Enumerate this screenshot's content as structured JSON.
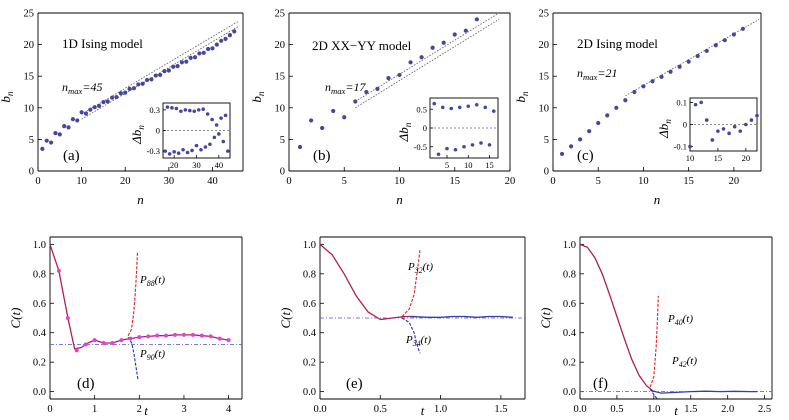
{
  "chart_data": [
    {
      "id": "a",
      "type": "scatter",
      "title": "1D Ising model",
      "annotation": "n",
      "annotation_sub": "max",
      "annotation_val": "=45",
      "panel_tag": "(a)",
      "xlabel": "n",
      "ylabel": "b",
      "ylabel_sub": "n",
      "xlim": [
        0,
        47
      ],
      "ylim": [
        0,
        25
      ],
      "xticks": [
        "0",
        "10",
        "20",
        "30",
        "40"
      ],
      "yticks": [
        "0",
        "5",
        "10",
        "15",
        "20",
        "25"
      ],
      "x": [
        1,
        2,
        3,
        4,
        5,
        6,
        7,
        8,
        9,
        10,
        11,
        12,
        13,
        14,
        15,
        16,
        17,
        18,
        19,
        20,
        21,
        22,
        23,
        24,
        25,
        26,
        27,
        28,
        29,
        30,
        31,
        32,
        33,
        34,
        35,
        36,
        37,
        38,
        39,
        40,
        41,
        42,
        43,
        44,
        45
      ],
      "values": [
        3.5,
        4.8,
        4.5,
        6,
        5.8,
        7.1,
        6.9,
        8.2,
        8.0,
        9.3,
        9.1,
        9.7,
        10.1,
        10.3,
        10.9,
        11.0,
        11.6,
        11.7,
        12.3,
        12.4,
        13.0,
        13.1,
        13.7,
        13.8,
        14.4,
        14.5,
        15.1,
        15.2,
        15.8,
        15.9,
        16.5,
        16.6,
        17.2,
        17.3,
        17.9,
        18.0,
        18.6,
        18.7,
        19.3,
        19.4,
        20.0,
        20.6,
        20.9,
        21.5,
        22.1
      ],
      "fit_lines": [
        {
          "x": [
            10,
            46
          ],
          "y": [
            9.0,
            23.7
          ]
        },
        {
          "x": [
            10,
            46
          ],
          "y": [
            8.2,
            22.9
          ]
        }
      ],
      "inset": {
        "ylabel": "Δb",
        "ylabel_sub": "n",
        "xlim": [
          15,
          45
        ],
        "ylim": [
          -0.4,
          0.4
        ],
        "xticks": [
          "20",
          "30",
          "40"
        ],
        "yticks": [
          "0.3",
          "0",
          "-0.3"
        ],
        "zero_line": 0,
        "x": [
          16,
          17,
          18,
          19,
          20,
          21,
          22,
          23,
          24,
          25,
          26,
          27,
          28,
          29,
          30,
          31,
          32,
          33,
          34,
          35,
          36,
          37,
          38,
          39,
          40,
          41,
          42,
          43,
          44
        ],
        "values": [
          -0.3,
          0.34,
          -0.34,
          0.33,
          -0.31,
          0.32,
          -0.33,
          0.28,
          -0.28,
          0.3,
          -0.32,
          0.29,
          -0.29,
          0.28,
          -0.22,
          0.3,
          -0.28,
          0.31,
          -0.24,
          0.24,
          -0.2,
          0.16,
          -0.1,
          0.08,
          -0.05,
          0.18,
          -0.16,
          0.22,
          -0.3
        ]
      }
    },
    {
      "id": "b",
      "type": "scatter",
      "title": "2D XX−YY model",
      "annotation": "n",
      "annotation_sub": "max",
      "annotation_val": "=17",
      "panel_tag": "(b)",
      "xlabel": "n",
      "ylabel": "b",
      "ylabel_sub": "n",
      "xlim": [
        0,
        20
      ],
      "ylim": [
        0,
        25
      ],
      "xticks": [
        "0",
        "5",
        "10",
        "15",
        "20"
      ],
      "yticks": [
        "0",
        "5",
        "10",
        "15",
        "20",
        "25"
      ],
      "x": [
        1,
        2,
        3,
        4,
        5,
        6,
        7,
        8,
        9,
        10,
        11,
        12,
        13,
        14,
        15,
        16,
        17
      ],
      "values": [
        3.8,
        8.0,
        6.8,
        9.5,
        8.5,
        11.0,
        12.5,
        13.0,
        14.7,
        15.2,
        17.2,
        18.0,
        19.5,
        20.3,
        21.6,
        22.2,
        24.0
      ],
      "fit_lines": [
        {
          "x": [
            6,
            19
          ],
          "y": [
            11.0,
            25.0
          ]
        },
        {
          "x": [
            6,
            19
          ],
          "y": [
            10.0,
            24.0
          ]
        }
      ],
      "inset": {
        "ylabel": "Δb",
        "ylabel_sub": "n",
        "xlim": [
          1,
          17
        ],
        "ylim": [
          -0.8,
          0.8
        ],
        "xticks": [
          "5",
          "10",
          "15"
        ],
        "yticks": [
          "0.5",
          "0",
          "-0.5"
        ],
        "zero_line": 0,
        "x": [
          2,
          3,
          4,
          5,
          6,
          7,
          8,
          9,
          10,
          11,
          12,
          13,
          14,
          15,
          16
        ],
        "values": [
          0.65,
          -0.7,
          0.55,
          -0.55,
          0.52,
          -0.58,
          0.55,
          -0.5,
          0.58,
          -0.45,
          0.62,
          -0.4,
          0.55,
          -0.45,
          0.45
        ]
      }
    },
    {
      "id": "c",
      "type": "scatter",
      "title": "2D Ising model",
      "annotation": "n",
      "annotation_sub": "max",
      "annotation_val": "=21",
      "panel_tag": "(c)",
      "xlabel": "n",
      "ylabel": "b",
      "ylabel_sub": "n",
      "xlim": [
        0,
        23
      ],
      "ylim": [
        0,
        25
      ],
      "xticks": [
        "0",
        "5",
        "10",
        "15",
        "20"
      ],
      "yticks": [
        "0",
        "5",
        "10",
        "15",
        "20",
        "25"
      ],
      "x": [
        1,
        2,
        3,
        4,
        5,
        6,
        7,
        8,
        9,
        10,
        11,
        12,
        13,
        14,
        15,
        16,
        17,
        18,
        19,
        20,
        21
      ],
      "values": [
        2.7,
        3.9,
        5.0,
        6.3,
        7.6,
        8.8,
        10.0,
        11.2,
        12.5,
        13.4,
        14.2,
        14.9,
        15.7,
        16.5,
        17.3,
        18.2,
        19.0,
        19.9,
        20.7,
        21.6,
        22.5
      ],
      "fit_lines": [
        {
          "x": [
            8,
            22.8
          ],
          "y": [
            11.9,
            24.0
          ]
        }
      ],
      "inset": {
        "ylabel": "Δb",
        "ylabel_sub": "n",
        "xlim": [
          10,
          22
        ],
        "ylim": [
          -0.12,
          0.12
        ],
        "xticks": [
          "10",
          "15",
          "20"
        ],
        "yticks": [
          "0.1",
          "0",
          "-0.1"
        ],
        "zero_line": 0,
        "x": [
          10,
          11,
          12,
          13,
          14,
          15,
          16,
          17,
          18,
          19,
          20,
          21,
          22
        ],
        "values": [
          -0.1,
          0.09,
          0.1,
          0.02,
          -0.07,
          -0.03,
          -0.02,
          -0.04,
          -0.01,
          -0.03,
          0.0,
          0.02,
          0.04
        ]
      }
    },
    {
      "id": "d",
      "type": "line",
      "panel_tag": "(d)",
      "xlabel": "t",
      "ylabel": "C(t)",
      "xlim": [
        0,
        4.3
      ],
      "ylim": [
        -0.05,
        1.05
      ],
      "xticks": [
        "0",
        "1",
        "2",
        "3",
        "4"
      ],
      "xtick_values": [
        0,
        1,
        2,
        3,
        4
      ],
      "yticks": [
        "0.0",
        "0.2",
        "0.4",
        "0.6",
        "0.8",
        "1.0"
      ],
      "ytick_values": [
        0,
        0.2,
        0.4,
        0.6,
        0.8,
        1.0
      ],
      "asymptote": 0.32,
      "series": [
        {
          "name": "C(t)",
          "style": "solid",
          "color": "#b0204f",
          "x": [
            0,
            0.2,
            0.4,
            0.55,
            0.7,
            0.85,
            1.0,
            1.2,
            1.4,
            1.6,
            1.8,
            2.0,
            2.2,
            2.4,
            2.6,
            2.8,
            3.0,
            3.2,
            3.4,
            3.6,
            3.8,
            4.0
          ],
          "y": [
            1.0,
            0.82,
            0.5,
            0.29,
            0.3,
            0.33,
            0.35,
            0.33,
            0.33,
            0.35,
            0.36,
            0.37,
            0.375,
            0.38,
            0.38,
            0.385,
            0.385,
            0.385,
            0.38,
            0.375,
            0.36,
            0.35
          ]
        },
        {
          "name": "P88(t)",
          "label_main": "P",
          "label_sub": "88",
          "label_tail": "(t)",
          "style": "dashed",
          "color": "#e02020",
          "x": [
            1.75,
            1.82,
            1.87,
            1.91,
            1.94,
            1.96
          ],
          "y": [
            0.38,
            0.42,
            0.52,
            0.67,
            0.82,
            0.95
          ]
        },
        {
          "name": "P90(t)",
          "label_main": "P",
          "label_sub": "90",
          "label_tail": "(t)",
          "style": "dashed",
          "color": "#2030c0",
          "x": [
            1.75,
            1.83,
            1.88,
            1.92,
            1.95,
            1.97
          ],
          "y": [
            0.37,
            0.33,
            0.26,
            0.18,
            0.12,
            0.08
          ]
        }
      ],
      "markers": {
        "color": "#e040e0",
        "x": [
          0.2,
          0.4,
          0.6,
          0.8,
          1.0,
          1.2,
          1.4,
          1.6,
          1.8,
          2.0,
          2.2,
          2.4,
          2.6,
          2.8,
          3.0,
          3.2,
          3.4,
          3.6,
          3.8,
          4.0
        ],
        "y": [
          0.82,
          0.5,
          0.28,
          0.32,
          0.35,
          0.33,
          0.33,
          0.35,
          0.36,
          0.37,
          0.375,
          0.38,
          0.38,
          0.385,
          0.385,
          0.385,
          0.38,
          0.375,
          0.36,
          0.35
        ]
      }
    },
    {
      "id": "e",
      "type": "line",
      "panel_tag": "(e)",
      "xlabel": "t",
      "ylabel": "C(t)",
      "xlim": [
        0,
        1.7
      ],
      "ylim": [
        -0.05,
        1.05
      ],
      "xticks": [
        "0.0",
        "0.5",
        "1.0",
        "1.5"
      ],
      "xtick_values": [
        0,
        0.5,
        1.0,
        1.5
      ],
      "yticks": [
        "0.0",
        "0.2",
        "0.4",
        "0.6",
        "0.8",
        "1.0"
      ],
      "ytick_values": [
        0,
        0.2,
        0.4,
        0.6,
        0.8,
        1.0
      ],
      "asymptote": 0.5,
      "series": [
        {
          "name": "C(t)",
          "style": "solid",
          "color": "#b0204f",
          "x": [
            0,
            0.1,
            0.2,
            0.3,
            0.4,
            0.5,
            0.6,
            0.7,
            0.75,
            0.8
          ],
          "y": [
            1.0,
            0.93,
            0.8,
            0.65,
            0.54,
            0.49,
            0.5,
            0.51,
            0.51,
            0.51
          ]
        },
        {
          "name": "C(t) tail",
          "style": "solid",
          "color": "#3040b0",
          "x": [
            0.75,
            0.9,
            1.0,
            1.1,
            1.2,
            1.3,
            1.4,
            1.5,
            1.6
          ],
          "y": [
            0.51,
            0.505,
            0.505,
            0.51,
            0.51,
            0.505,
            0.51,
            0.51,
            0.505
          ]
        },
        {
          "name": "P32(t)",
          "label_main": "P",
          "label_sub": "32",
          "label_tail": "(t)",
          "style": "dashed",
          "color": "#e02020",
          "x": [
            0.68,
            0.74,
            0.78,
            0.8,
            0.82,
            0.83
          ],
          "y": [
            0.51,
            0.56,
            0.66,
            0.78,
            0.9,
            0.97
          ]
        },
        {
          "name": "P34(t)",
          "label_main": "P",
          "label_sub": "34",
          "label_tail": "(t)",
          "style": "dashed",
          "color": "#2030c0",
          "x": [
            0.68,
            0.74,
            0.78,
            0.8,
            0.82,
            0.83
          ],
          "y": [
            0.5,
            0.47,
            0.4,
            0.33,
            0.28,
            0.26
          ]
        }
      ]
    },
    {
      "id": "f",
      "type": "line",
      "panel_tag": "(f)",
      "xlabel": "t",
      "ylabel": "C(t)",
      "xlim": [
        0,
        2.6
      ],
      "ylim": [
        -0.05,
        1.05
      ],
      "xticks": [
        "0.0",
        "0.5",
        "1.0",
        "1.5",
        "2.0",
        "2.5"
      ],
      "xtick_values": [
        0,
        0.5,
        1.0,
        1.5,
        2.0,
        2.5
      ],
      "yticks": [
        "0.0",
        "0.2",
        "0.4",
        "0.6",
        "0.8",
        "1.0"
      ],
      "ytick_values": [
        0,
        0.2,
        0.4,
        0.6,
        0.8,
        1.0
      ],
      "asymptote": 0.0,
      "series": [
        {
          "name": "C(t)",
          "style": "solid",
          "color": "#b0204f",
          "x": [
            0,
            0.1,
            0.2,
            0.3,
            0.4,
            0.5,
            0.6,
            0.7,
            0.8,
            0.9,
            1.0
          ],
          "y": [
            1.0,
            0.98,
            0.91,
            0.8,
            0.66,
            0.51,
            0.36,
            0.22,
            0.11,
            0.04,
            0.0
          ]
        },
        {
          "name": "C(t) tail",
          "style": "solid",
          "color": "#3040b0",
          "x": [
            0.95,
            1.1,
            1.3,
            1.5,
            1.7,
            1.9,
            2.1,
            2.3,
            2.4
          ],
          "y": [
            0.01,
            -0.01,
            -0.005,
            0.0,
            0.003,
            0.0,
            0.002,
            0.0,
            0.0
          ]
        },
        {
          "name": "P40(t)",
          "label_main": "P",
          "label_sub": "40",
          "label_tail": "(t)",
          "style": "dashed",
          "color": "#e02020",
          "x": [
            0.95,
            1.0,
            1.03,
            1.05,
            1.06
          ],
          "y": [
            0.03,
            0.1,
            0.3,
            0.5,
            0.65
          ]
        },
        {
          "name": "P42(t)",
          "label_main": "P",
          "label_sub": "42",
          "label_tail": "(t)",
          "style": "dashed",
          "color": "#2030c0",
          "x": [
            0.95,
            1.0,
            1.03,
            1.05
          ],
          "y": [
            0.02,
            -0.02,
            -0.04,
            -0.05
          ]
        }
      ]
    }
  ]
}
